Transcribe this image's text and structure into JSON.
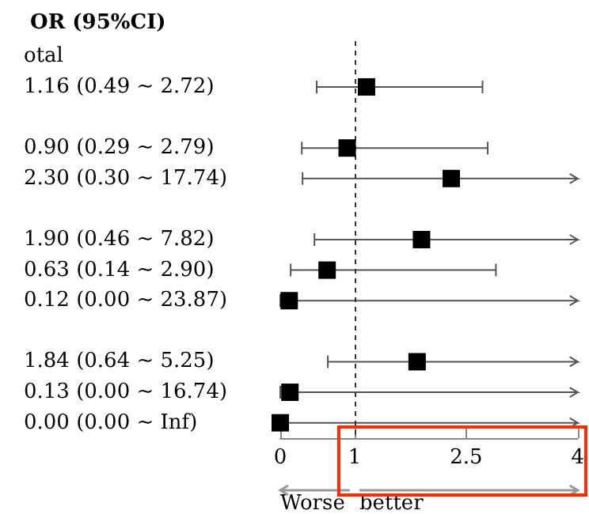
{
  "chart_data": {
    "type": "scatter",
    "orientation": "horizontal",
    "title": "OR (95%CI)",
    "categories": [
      "otal",
      "1.16 (0.49 ~ 2.72)",
      null,
      "0.90 (0.29 ~ 2.79)",
      "2.30 (0.30 ~ 17.74)",
      null,
      "1.90 (0.46 ~ 7.82)",
      "0.63 (0.14 ~ 2.90)",
      "0.12 (0.00 ~ 23.87)",
      null,
      "1.84 (0.64 ~ 5.25)",
      "0.13 (0.00 ~ 16.74)",
      "0.00 (0.00 ~ Inf)"
    ],
    "series": [
      {
        "color": "#000000",
        "values": [
          null,
          1.16,
          null,
          0.9,
          2.3,
          null,
          1.9,
          0.63,
          0.12,
          null,
          1.84,
          0.13,
          0.0
        ],
        "errors": [
          null,
          [
            0.49,
            2.72
          ],
          null,
          [
            0.29,
            2.79
          ],
          [
            0.3,
            4
          ],
          null,
          [
            0.46,
            4
          ],
          [
            0.14,
            2.9
          ],
          [
            0,
            4
          ],
          null,
          [
            0.64,
            4
          ],
          [
            0,
            4
          ],
          [
            0,
            4
          ]
        ]
      }
    ],
    "xlim": [
      0,
      4
    ],
    "xticks": [
      0,
      1,
      2.5,
      4
    ],
    "ref_lines": [
      {
        "axis": "x",
        "value": 1,
        "line_style": "dashed",
        "color": "#333333"
      }
    ],
    "annotations": [
      "Worse",
      "better"
    ],
    "marker": "square",
    "grid": false
  }
}
